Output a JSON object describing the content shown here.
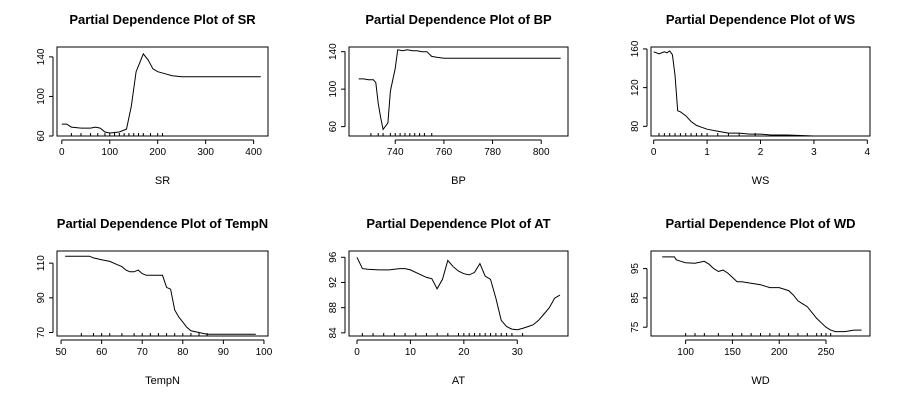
{
  "chart_data": [
    {
      "type": "line",
      "title": "Partial Dependence Plot of SR",
      "xlabel": "SR",
      "ylabel": "",
      "xlim": [
        -10,
        430
      ],
      "ylim": [
        60,
        150
      ],
      "xticks": [
        0,
        100,
        200,
        300,
        400
      ],
      "yticks": [
        60,
        100,
        140
      ],
      "rug": [
        20,
        40,
        60,
        75,
        90,
        100,
        110,
        120,
        130,
        140,
        150,
        160,
        170,
        185,
        200,
        210
      ],
      "x": [
        0,
        10,
        20,
        40,
        60,
        70,
        80,
        90,
        100,
        120,
        135,
        145,
        155,
        170,
        180,
        190,
        200,
        215,
        230,
        250,
        280,
        320,
        360,
        415
      ],
      "y": [
        72,
        72,
        69,
        68,
        68,
        69,
        68,
        64,
        63,
        64,
        67,
        90,
        125,
        143,
        137,
        128,
        125,
        123,
        121,
        120,
        120,
        120,
        120,
        120
      ]
    },
    {
      "type": "line",
      "title": "Partial Dependence Plot of BP",
      "xlabel": "BP",
      "ylabel": "",
      "xlim": [
        721,
        811
      ],
      "ylim": [
        50,
        145
      ],
      "xticks": [
        740,
        760,
        780,
        800
      ],
      "yticks": [
        60,
        100,
        140
      ],
      "rug": [
        730,
        733,
        735,
        738,
        740,
        742,
        744,
        746,
        748,
        750,
        752,
        755
      ],
      "x": [
        725,
        727,
        729,
        731,
        732,
        733,
        734,
        735,
        737,
        738,
        740,
        741,
        743,
        745,
        747,
        749,
        751,
        753,
        755,
        757,
        760,
        770,
        780,
        790,
        800,
        808
      ],
      "y": [
        111,
        111,
        110,
        110,
        107,
        85,
        70,
        57,
        64,
        98,
        122,
        142,
        141,
        142,
        141,
        141,
        140,
        140,
        135,
        134,
        133,
        133,
        133,
        133,
        133,
        133
      ]
    },
    {
      "type": "line",
      "title": "Partial Dependence Plot of WS",
      "xlabel": "WS",
      "ylabel": "",
      "xlim": [
        -0.05,
        4.05
      ],
      "ylim": [
        70,
        162
      ],
      "xticks": [
        0,
        1,
        2,
        3,
        4
      ],
      "yticks": [
        80,
        120,
        160
      ],
      "rug": [
        0.1,
        0.2,
        0.3,
        0.4,
        0.5,
        0.6,
        0.7,
        0.8,
        0.9,
        1.0,
        1.2,
        1.4,
        1.6,
        1.9
      ],
      "x": [
        0,
        0.1,
        0.2,
        0.25,
        0.3,
        0.35,
        0.4,
        0.45,
        0.5,
        0.6,
        0.7,
        0.8,
        0.9,
        1.0,
        1.2,
        1.4,
        1.6,
        1.8,
        2.0,
        2.2,
        2.5,
        3.0,
        3.5,
        3.9
      ],
      "y": [
        157,
        155,
        157,
        156,
        158,
        154,
        133,
        96,
        95,
        91,
        85,
        81,
        79,
        77,
        75,
        73,
        73,
        72,
        72,
        71,
        71,
        70,
        70,
        70
      ]
    },
    {
      "type": "line",
      "title": "Partial Dependence Plot of TempN",
      "xlabel": "TempN",
      "ylabel": "",
      "xlim": [
        49,
        101
      ],
      "ylim": [
        68,
        117
      ],
      "xticks": [
        50,
        60,
        70,
        80,
        90,
        100
      ],
      "yticks": [
        70,
        90,
        110
      ],
      "rug": [
        55,
        58,
        60,
        62,
        65,
        68,
        70,
        72,
        74,
        76,
        78,
        80,
        82,
        84,
        86
      ],
      "x": [
        51,
        53,
        55,
        57,
        58,
        60,
        62,
        64,
        65,
        66,
        67,
        68,
        69,
        70,
        71,
        72,
        74,
        75,
        76,
        77,
        78,
        79,
        80,
        81,
        82,
        84,
        86,
        88,
        92,
        95,
        98
      ],
      "y": [
        114,
        114,
        114,
        114,
        113,
        112,
        111,
        109,
        108,
        106,
        105,
        105,
        106,
        104,
        103,
        103,
        103,
        103,
        96,
        95,
        83,
        79,
        76,
        73,
        71,
        70,
        69,
        69,
        69,
        69,
        69
      ]
    },
    {
      "type": "line",
      "title": "Partial Dependence Plot of AT",
      "xlabel": "AT",
      "ylabel": "",
      "xlim": [
        -1.5,
        39.5
      ],
      "ylim": [
        83.5,
        97
      ],
      "xticks": [
        0,
        10,
        20,
        30
      ],
      "yticks": [
        84,
        88,
        92,
        96
      ],
      "rug": [
        1,
        3,
        5,
        7,
        9,
        11,
        13,
        15,
        17,
        19,
        20,
        21,
        22,
        23,
        24,
        25,
        26,
        27,
        28,
        29,
        31
      ],
      "x": [
        0,
        1,
        2,
        4,
        6,
        8,
        9,
        10,
        12,
        13,
        14,
        15,
        16,
        17,
        18,
        19,
        20,
        21,
        22,
        23,
        24,
        25,
        26,
        27,
        28,
        29,
        30,
        31,
        32,
        33,
        34,
        35,
        36,
        37,
        38
      ],
      "y": [
        96,
        94.2,
        94.1,
        94,
        94,
        94.2,
        94.2,
        94,
        93.2,
        92.8,
        92.6,
        91,
        92.5,
        95.5,
        94.5,
        93.8,
        93.4,
        93.2,
        93.6,
        95,
        93,
        92.5,
        89.5,
        86,
        85,
        84.6,
        84.5,
        84.7,
        85,
        85.3,
        86,
        87,
        88,
        89.5,
        90
      ]
    },
    {
      "type": "line",
      "title": "Partial Dependence Plot of WD",
      "xlabel": "WD",
      "ylabel": "",
      "xlim": [
        63,
        297
      ],
      "ylim": [
        72,
        101
      ],
      "xticks": [
        100,
        150,
        200,
        250
      ],
      "yticks": [
        75,
        85,
        95
      ],
      "rug": [
        100,
        110,
        120,
        135,
        150,
        160,
        170,
        180,
        190,
        200,
        210,
        220,
        230,
        240,
        245,
        250,
        255
      ],
      "x": [
        75,
        80,
        88,
        90,
        95,
        100,
        110,
        120,
        125,
        130,
        135,
        140,
        145,
        150,
        155,
        160,
        170,
        180,
        185,
        190,
        200,
        210,
        215,
        220,
        225,
        230,
        235,
        240,
        245,
        250,
        255,
        260,
        270,
        280,
        288
      ],
      "y": [
        99,
        99,
        99,
        98,
        97.5,
        97,
        96.8,
        97.5,
        96.5,
        95,
        94,
        94.5,
        93.5,
        92,
        90.5,
        90.5,
        90,
        89.5,
        89,
        88.5,
        88.5,
        87.5,
        86,
        84,
        83,
        82,
        80,
        78,
        76.5,
        75,
        74,
        73.5,
        73.5,
        74,
        74
      ]
    }
  ]
}
